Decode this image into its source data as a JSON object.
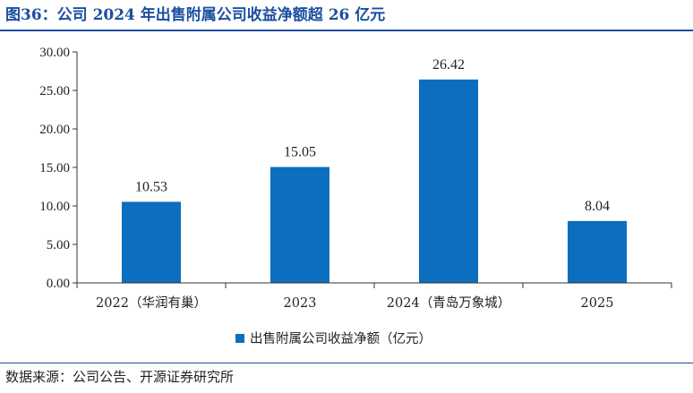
{
  "header": {
    "title": "图36：公司 2024 年出售附属公司收益净额超 26 亿元"
  },
  "footer": {
    "source": "数据来源：公司公告、开源证券研究所"
  },
  "colors": {
    "bar": "#0b6ebf",
    "title": "#1a4fa0"
  },
  "chart_data": {
    "type": "bar",
    "categories": [
      "2022（华润有巢）",
      "2023",
      "2024（青岛万象城）",
      "2025"
    ],
    "series": [
      {
        "name": "出售附属公司收益净额（亿元）",
        "values": [
          10.53,
          15.05,
          26.42,
          8.04
        ]
      }
    ],
    "data_labels": [
      "10.53",
      "15.05",
      "26.42",
      "8.04"
    ],
    "yticks": [
      "0.00",
      "5.00",
      "10.00",
      "15.00",
      "20.00",
      "25.00",
      "30.00"
    ],
    "ylim": [
      0,
      30
    ],
    "grid": false,
    "legend_position": "bottom"
  }
}
